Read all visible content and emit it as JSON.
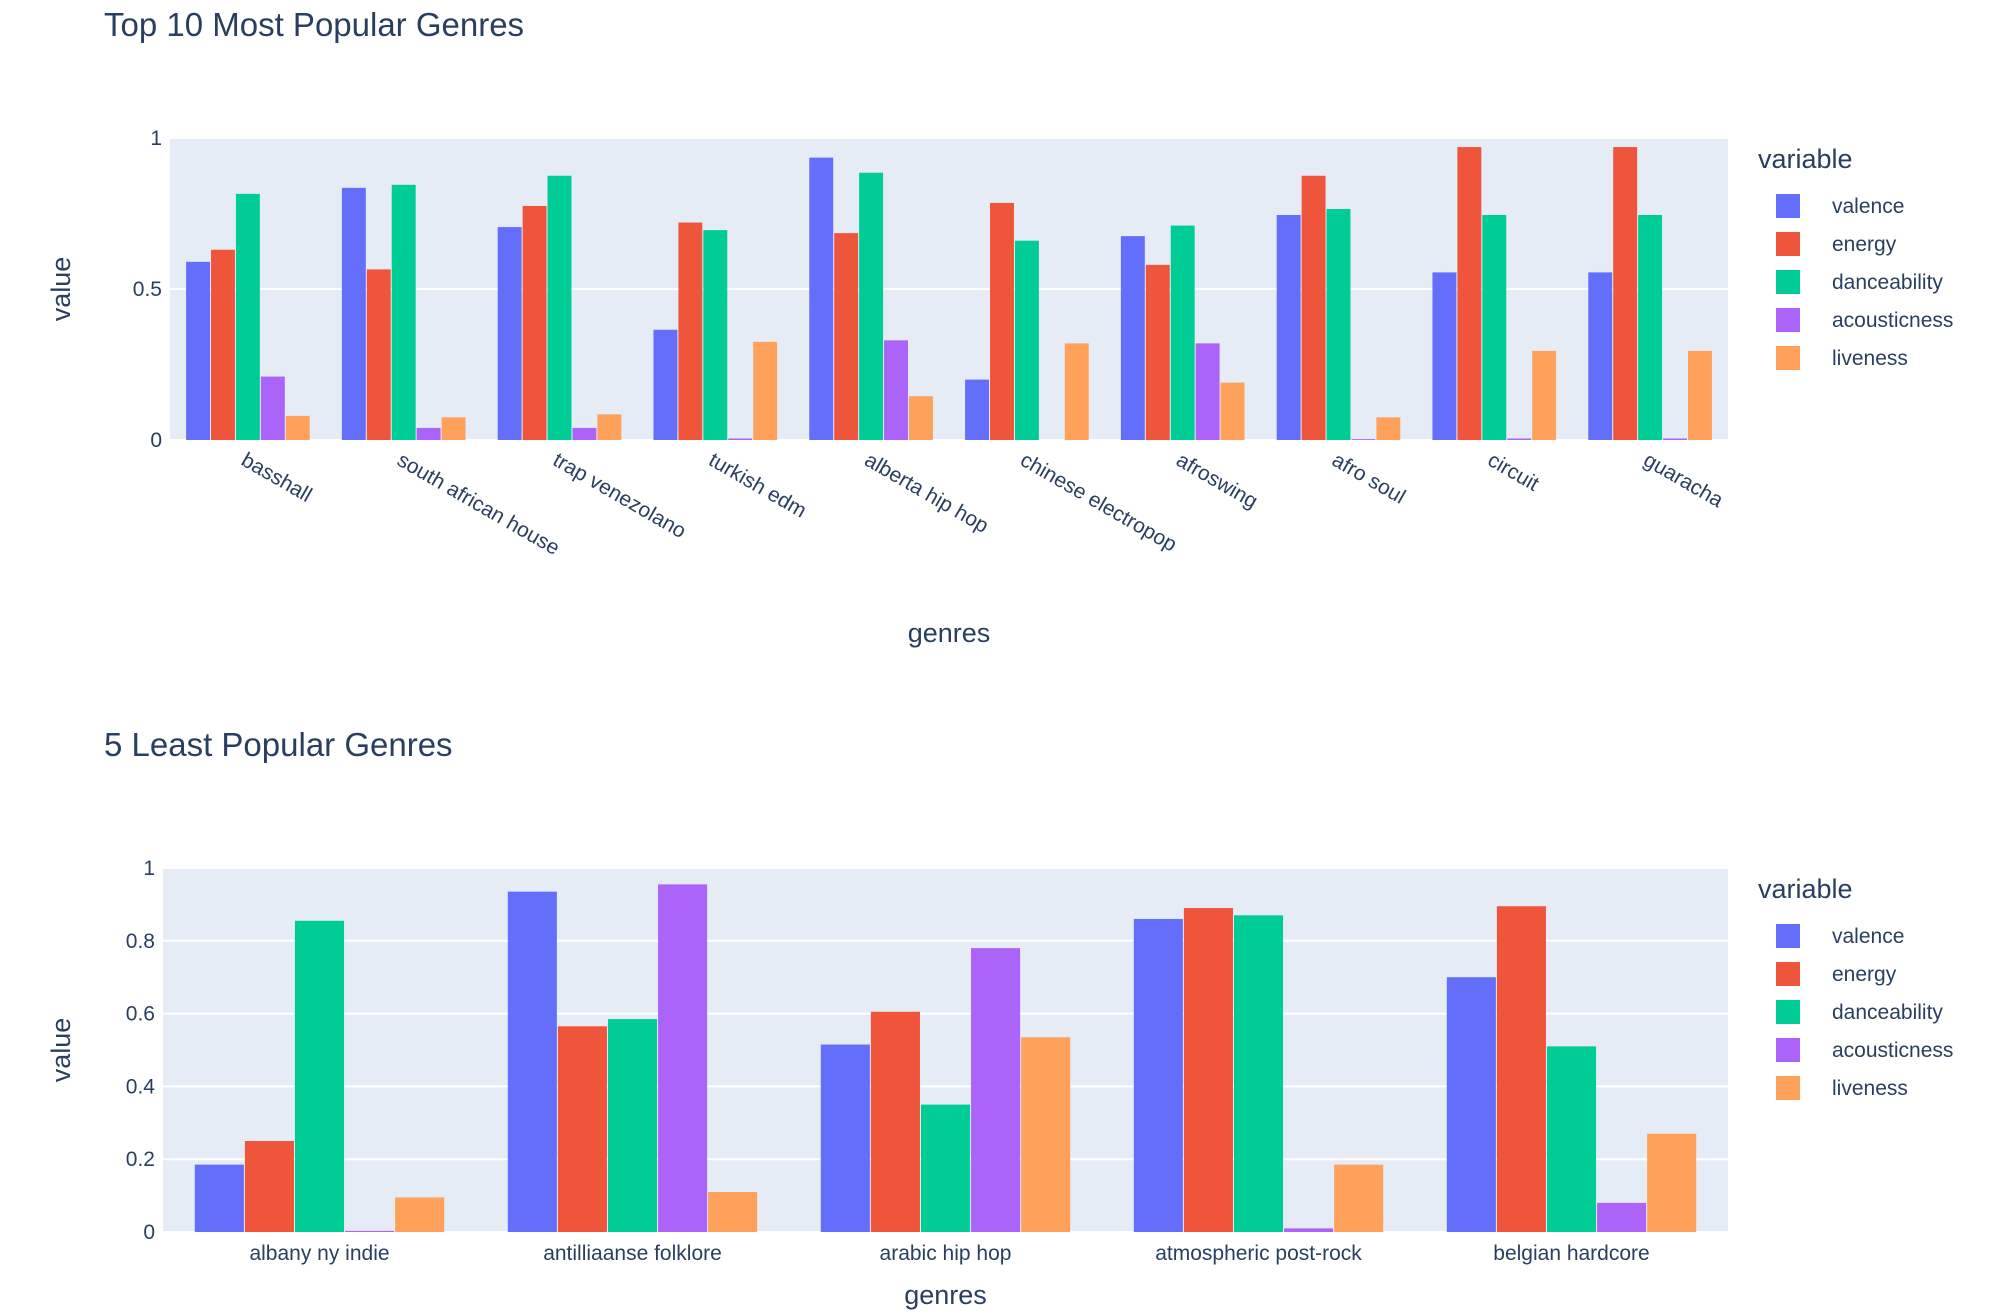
{
  "chart_data": [
    {
      "type": "bar",
      "title": "Top 10 Most Popular Genres",
      "xlabel": "genres",
      "ylabel": "value",
      "legend_title": "variable",
      "ylim": [
        0,
        1.0
      ],
      "yticks": [
        0,
        0.5,
        1
      ],
      "ytick_labels": [
        "0",
        "0.5",
        "1"
      ],
      "categories": [
        "basshall",
        "south african house",
        "trap venezolano",
        "turkish edm",
        "alberta hip hop",
        "chinese electropop",
        "afroswing",
        "afro soul",
        "circuit",
        "guaracha"
      ],
      "tick_rotation": 30,
      "series": [
        {
          "name": "valence",
          "color": "#636efa",
          "values": [
            0.59,
            0.835,
            0.705,
            0.365,
            0.935,
            0.2,
            0.675,
            0.745,
            0.555,
            0.555
          ]
        },
        {
          "name": "energy",
          "color": "#EF553B",
          "values": [
            0.63,
            0.565,
            0.775,
            0.72,
            0.685,
            0.785,
            0.58,
            0.875,
            0.97,
            0.97
          ]
        },
        {
          "name": "danceability",
          "color": "#00cc96",
          "values": [
            0.815,
            0.845,
            0.875,
            0.695,
            0.885,
            0.66,
            0.71,
            0.765,
            0.745,
            0.745
          ]
        },
        {
          "name": "acousticness",
          "color": "#ab63fa",
          "values": [
            0.21,
            0.04,
            0.04,
            0.005,
            0.33,
            0.0,
            0.32,
            0.003,
            0.005,
            0.005
          ]
        },
        {
          "name": "liveness",
          "color": "#FFA15A",
          "values": [
            0.08,
            0.075,
            0.085,
            0.325,
            0.145,
            0.32,
            0.19,
            0.075,
            0.295,
            0.295
          ]
        }
      ]
    },
    {
      "type": "bar",
      "title": "5 Least Popular Genres",
      "xlabel": "genres",
      "ylabel": "value",
      "legend_title": "variable",
      "ylim": [
        0,
        1.0
      ],
      "yticks": [
        0,
        0.2,
        0.4,
        0.6,
        0.8,
        1
      ],
      "ytick_labels": [
        "0",
        "0.2",
        "0.4",
        "0.6",
        "0.8",
        "1"
      ],
      "categories": [
        "albany ny indie",
        "antilliaanse folklore",
        "arabic hip hop",
        "atmospheric post-rock",
        "belgian hardcore"
      ],
      "tick_rotation": 0,
      "series": [
        {
          "name": "valence",
          "color": "#636efa",
          "values": [
            0.185,
            0.935,
            0.515,
            0.86,
            0.7
          ]
        },
        {
          "name": "energy",
          "color": "#EF553B",
          "values": [
            0.25,
            0.565,
            0.605,
            0.89,
            0.895
          ]
        },
        {
          "name": "danceability",
          "color": "#00cc96",
          "values": [
            0.855,
            0.585,
            0.35,
            0.87,
            0.51
          ]
        },
        {
          "name": "acousticness",
          "color": "#ab63fa",
          "values": [
            0.003,
            0.955,
            0.78,
            0.01,
            0.08
          ]
        },
        {
          "name": "liveness",
          "color": "#FFA15A",
          "values": [
            0.095,
            0.11,
            0.535,
            0.185,
            0.27
          ]
        }
      ]
    }
  ]
}
